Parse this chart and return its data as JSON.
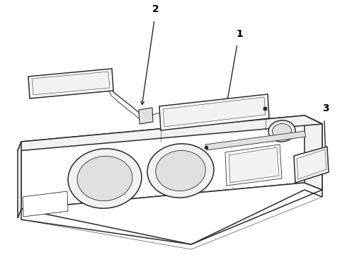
{
  "background_color": "#ffffff",
  "line_color": "#2a2a2a",
  "light_line": "#555555",
  "fill_white": "#ffffff",
  "fill_light": "#f2f2f2",
  "fill_mid": "#e0e0e0",
  "label_1": "1",
  "label_2": "2",
  "label_3": "3",
  "lw_main": 1.1,
  "lw_detail": 0.6,
  "lw_thin": 0.4
}
